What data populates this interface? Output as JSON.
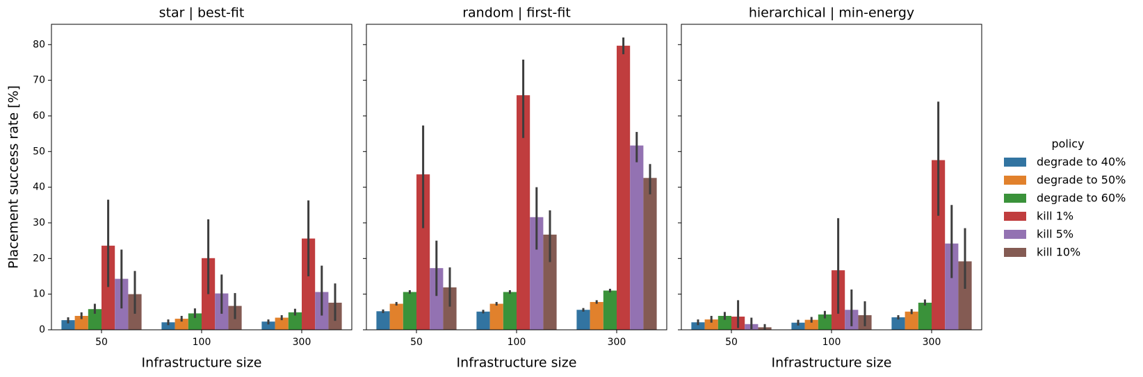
{
  "chart_data": [
    {
      "type": "bar",
      "title": "star | best-fit",
      "xlabel": "Infrastructure size",
      "ylabel": "Placement success rate [%]",
      "categories": [
        "50",
        "100",
        "300"
      ],
      "ylim": [
        0,
        85.7
      ],
      "yticks": [
        0,
        10,
        20,
        30,
        40,
        50,
        60,
        70,
        80
      ],
      "series": [
        {
          "name": "degrade to 40%",
          "color": "#3274a1",
          "values": [
            2.7,
            2.1,
            2.3
          ],
          "ci_low": [
            1.8,
            1.3,
            1.5
          ],
          "ci_high": [
            3.5,
            2.9,
            2.9
          ]
        },
        {
          "name": "degrade to 50%",
          "color": "#e1812c",
          "values": [
            3.9,
            3.1,
            3.4
          ],
          "ci_low": [
            3.0,
            2.3,
            2.7
          ],
          "ci_high": [
            4.9,
            3.9,
            4.1
          ]
        },
        {
          "name": "degrade to 60%",
          "color": "#3a923a",
          "values": [
            5.8,
            4.6,
            4.9
          ],
          "ci_low": [
            4.5,
            3.3,
            4.0
          ],
          "ci_high": [
            7.3,
            6.0,
            5.9
          ]
        },
        {
          "name": "kill 1%",
          "color": "#c03d3e",
          "values": [
            23.6,
            20.1,
            25.6
          ],
          "ci_low": [
            12.0,
            10.0,
            15.0
          ],
          "ci_high": [
            36.5,
            31.0,
            36.3
          ]
        },
        {
          "name": "kill 5%",
          "color": "#9372b2",
          "values": [
            14.3,
            10.2,
            10.6
          ],
          "ci_low": [
            6.0,
            4.5,
            4.0
          ],
          "ci_high": [
            22.5,
            15.5,
            18.0
          ]
        },
        {
          "name": "kill 10%",
          "color": "#845b53",
          "values": [
            10.0,
            6.7,
            7.6
          ],
          "ci_low": [
            4.5,
            3.0,
            2.5
          ],
          "ci_high": [
            16.5,
            10.3,
            13.0
          ]
        }
      ]
    },
    {
      "type": "bar",
      "title": "random | first-fit",
      "xlabel": "Infrastructure size",
      "categories": [
        "50",
        "100",
        "300"
      ],
      "ylim": [
        0,
        85.7
      ],
      "yticks": [
        0,
        10,
        20,
        30,
        40,
        50,
        60,
        70,
        80
      ],
      "series": [
        {
          "name": "degrade to 40%",
          "color": "#3274a1",
          "values": [
            5.2,
            5.1,
            5.6
          ],
          "ci_low": [
            4.7,
            4.6,
            5.1
          ],
          "ci_high": [
            5.7,
            5.6,
            6.1
          ]
        },
        {
          "name": "degrade to 50%",
          "color": "#e1812c",
          "values": [
            7.3,
            7.3,
            7.8
          ],
          "ci_low": [
            6.8,
            6.8,
            7.3
          ],
          "ci_high": [
            7.8,
            7.8,
            8.3
          ]
        },
        {
          "name": "degrade to 60%",
          "color": "#3a923a",
          "values": [
            10.6,
            10.6,
            11.0
          ],
          "ci_low": [
            10.1,
            10.1,
            10.5
          ],
          "ci_high": [
            11.1,
            11.1,
            11.5
          ]
        },
        {
          "name": "kill 1%",
          "color": "#c03d3e",
          "values": [
            43.6,
            65.8,
            79.7
          ],
          "ci_low": [
            28.5,
            53.8,
            77.3
          ],
          "ci_high": [
            57.3,
            75.8,
            82.0
          ]
        },
        {
          "name": "kill 5%",
          "color": "#9372b2",
          "values": [
            17.3,
            31.6,
            51.7
          ],
          "ci_low": [
            9.5,
            22.5,
            47.0
          ],
          "ci_high": [
            25.0,
            40.0,
            55.5
          ]
        },
        {
          "name": "kill 10%",
          "color": "#845b53",
          "values": [
            11.9,
            26.7,
            42.6
          ],
          "ci_low": [
            6.5,
            19.0,
            38.0
          ],
          "ci_high": [
            17.5,
            33.5,
            46.5
          ]
        }
      ]
    },
    {
      "type": "bar",
      "title": "hierarchical | min-energy",
      "xlabel": "Infrastructure size",
      "legend_title": "policy",
      "categories": [
        "50",
        "100",
        "300"
      ],
      "ylim": [
        0,
        85.7
      ],
      "yticks": [
        0,
        10,
        20,
        30,
        40,
        50,
        60,
        70,
        80
      ],
      "series": [
        {
          "name": "degrade to 40%",
          "color": "#3274a1",
          "values": [
            2.1,
            2.0,
            3.5
          ],
          "ci_low": [
            1.3,
            1.2,
            2.9
          ],
          "ci_high": [
            2.9,
            2.8,
            4.1
          ]
        },
        {
          "name": "degrade to 50%",
          "color": "#e1812c",
          "values": [
            2.9,
            2.8,
            5.1
          ],
          "ci_low": [
            2.0,
            2.0,
            4.4
          ],
          "ci_high": [
            3.9,
            3.6,
            5.8
          ]
        },
        {
          "name": "degrade to 60%",
          "color": "#3a923a",
          "values": [
            3.9,
            4.3,
            7.6
          ],
          "ci_low": [
            2.8,
            3.2,
            6.8
          ],
          "ci_high": [
            5.0,
            5.3,
            8.5
          ]
        },
        {
          "name": "kill 1%",
          "color": "#c03d3e",
          "values": [
            3.7,
            16.7,
            47.6
          ],
          "ci_low": [
            0.5,
            4.5,
            32.0
          ],
          "ci_high": [
            8.3,
            31.3,
            64.0
          ]
        },
        {
          "name": "kill 5%",
          "color": "#9372b2",
          "values": [
            1.6,
            5.6,
            24.2
          ],
          "ci_low": [
            0.2,
            1.0,
            14.5
          ],
          "ci_high": [
            3.4,
            11.3,
            35.0
          ]
        },
        {
          "name": "kill 10%",
          "color": "#845b53",
          "values": [
            0.7,
            4.1,
            19.2
          ],
          "ci_low": [
            0.1,
            1.0,
            11.5
          ],
          "ci_high": [
            1.6,
            8.0,
            28.5
          ]
        }
      ]
    }
  ]
}
